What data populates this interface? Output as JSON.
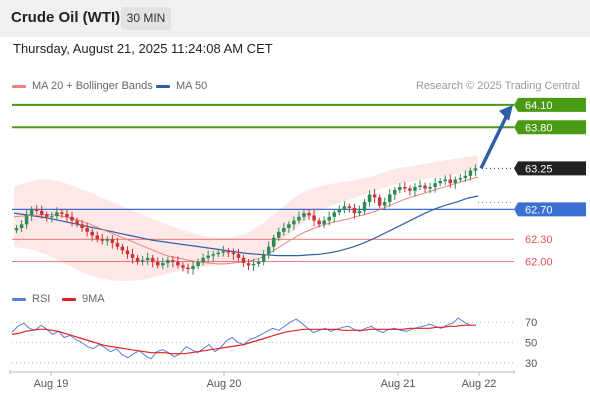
{
  "header": {
    "title": "Crude Oil (WTI)",
    "interval": "30 MIN"
  },
  "datetime": "Thursday, August 21, 2025 11:24:08 AM CET",
  "legend": {
    "ma20_bb": "MA 20 + Bollinger Bands",
    "ma50": "MA 50",
    "rsi": "RSI",
    "rsi_ma": "9MA"
  },
  "watermark": "Research © 2025 Trading Central",
  "colors": {
    "ma20": "#f08080",
    "bollinger_fill": "#fde3e3",
    "ma50": "#2f5fa8",
    "target": "#4a9a14",
    "pivot": "#3c6fd1",
    "support": "#e05252",
    "last": "#222222",
    "bull": "#2e8b57",
    "bear": "#cc3333",
    "rsi": "#5a7ed8",
    "rsi_ma": "#dd2222"
  },
  "chart_data": [
    {
      "type": "candlestick",
      "title": "Crude Oil (WTI)",
      "timeframe": "30 MIN",
      "x_tick_labels": [
        "Aug 19",
        "Aug 20",
        "Aug 21",
        "Aug 22"
      ],
      "ylim": [
        61.7,
        64.3
      ],
      "close": [
        62.45,
        62.5,
        62.62,
        62.7,
        62.68,
        62.63,
        62.6,
        62.61,
        62.66,
        62.64,
        62.6,
        62.55,
        62.5,
        62.45,
        62.4,
        62.35,
        62.3,
        62.28,
        62.3,
        62.25,
        62.2,
        62.15,
        62.1,
        62.05,
        62.0,
        62.02,
        62.05,
        62.0,
        61.95,
        61.98,
        62.02,
        62.0,
        61.95,
        61.92,
        61.9,
        61.94,
        62.0,
        62.05,
        62.08,
        62.1,
        62.12,
        62.14,
        62.12,
        62.1,
        62.05,
        61.98,
        61.95,
        61.97,
        62.0,
        62.1,
        62.2,
        62.32,
        62.4,
        62.45,
        62.5,
        62.55,
        62.6,
        62.65,
        62.62,
        62.55,
        62.5,
        62.55,
        62.6,
        62.66,
        62.7,
        62.74,
        62.72,
        62.65,
        62.68,
        62.8,
        62.9,
        62.86,
        62.75,
        62.8,
        62.9,
        62.96,
        63.0,
        62.98,
        62.95,
        63.0,
        63.02,
        62.98,
        63.0,
        63.05,
        63.08,
        63.1,
        63.05,
        63.1,
        63.12,
        63.15,
        63.22,
        63.25
      ],
      "series": [
        {
          "name": "MA 20 + Bollinger Bands",
          "ma": [
            62.6,
            62.61,
            62.62,
            62.62,
            62.63,
            62.63,
            62.62,
            62.6,
            62.58,
            62.55,
            62.52,
            62.48,
            62.44,
            62.4,
            62.36,
            62.32,
            62.28,
            62.24,
            62.2,
            62.16,
            62.12,
            62.08,
            62.06,
            62.04,
            62.02,
            62.0,
            61.99,
            61.98,
            61.97,
            61.97,
            61.98,
            61.99,
            62.0,
            62.02,
            62.05,
            62.1,
            62.16,
            62.22,
            62.28,
            62.34,
            62.39,
            62.43,
            62.47,
            62.5,
            62.53,
            62.55,
            62.57,
            62.6,
            62.62,
            62.65,
            62.68,
            62.72,
            62.76,
            62.8,
            62.84,
            62.87,
            62.9,
            62.93,
            62.96,
            62.99,
            63.02,
            63.05,
            63.08,
            63.11,
            63.13
          ],
          "upper": [
            63.0,
            63.05,
            63.08,
            63.1,
            63.1,
            63.08,
            63.04,
            63.0,
            62.95,
            62.9,
            62.85,
            62.8,
            62.75,
            62.7,
            62.65,
            62.6,
            62.55,
            62.5,
            62.46,
            62.42,
            62.38,
            62.35,
            62.33,
            62.32,
            62.32,
            62.34,
            62.38,
            62.44,
            62.52,
            62.62,
            62.72,
            62.82,
            62.9,
            62.96,
            63.0,
            63.03,
            63.05,
            63.07,
            63.09,
            63.11,
            63.14,
            63.18,
            63.22,
            63.25,
            63.27,
            63.29,
            63.31,
            63.33,
            63.35,
            63.37,
            63.39,
            63.41,
            63.42
          ],
          "lower": [
            62.2,
            62.18,
            62.16,
            62.12,
            62.08,
            62.02,
            61.96,
            61.9,
            61.84,
            61.8,
            61.77,
            61.75,
            61.74,
            61.74,
            61.75,
            61.77,
            61.8,
            61.83,
            61.86,
            61.89,
            61.92,
            61.93,
            61.94,
            61.95,
            61.96,
            61.98,
            62.0,
            62.04,
            62.1,
            62.18,
            62.28,
            62.38,
            62.48,
            62.58,
            62.66,
            62.72,
            62.77,
            62.81,
            62.85,
            62.89,
            62.93,
            62.97,
            63.01,
            63.04,
            63.06,
            63.08,
            63.1,
            63.12,
            63.14,
            63.16,
            63.18,
            63.2,
            63.22
          ]
        },
        {
          "name": "MA 50",
          "values": [
            62.65,
            62.63,
            62.61,
            62.59,
            62.56,
            62.53,
            62.5,
            62.47,
            62.44,
            62.41,
            62.38,
            62.35,
            62.32,
            62.29,
            62.27,
            62.25,
            62.23,
            62.21,
            62.19,
            62.17,
            62.15,
            62.13,
            62.11,
            62.1,
            62.09,
            62.08,
            62.08,
            62.08,
            62.09,
            62.1,
            62.12,
            62.15,
            62.19,
            62.24,
            62.3,
            62.37,
            62.44,
            62.51,
            62.58,
            62.65,
            62.71,
            62.76,
            62.8,
            62.85,
            62.88
          ]
        }
      ],
      "levels": [
        {
          "value": 64.1,
          "label": "64.10",
          "kind": "target"
        },
        {
          "value": 63.8,
          "label": "63.80",
          "kind": "target"
        },
        {
          "value": 63.25,
          "label": "63.25",
          "kind": "last_price"
        },
        {
          "value": 62.7,
          "label": "62.70",
          "kind": "pivot"
        },
        {
          "value": 62.3,
          "label": "62.30",
          "kind": "support"
        },
        {
          "value": 62.0,
          "label": "62.00",
          "kind": "support"
        }
      ],
      "annotation": {
        "type": "arrow",
        "from": 63.25,
        "to": 64.1
      }
    },
    {
      "type": "line",
      "ylim": [
        25,
        80
      ],
      "y_tick_labels": [
        "70",
        "50",
        "30"
      ],
      "series": [
        {
          "name": "RSI",
          "values": [
            60,
            66,
            69,
            64,
            62,
            67,
            63,
            58,
            61,
            55,
            57,
            53,
            50,
            46,
            44,
            48,
            45,
            41,
            44,
            38,
            35,
            39,
            42,
            37,
            34,
            41,
            43,
            40,
            36,
            39,
            46,
            43,
            40,
            44,
            48,
            41,
            45,
            52,
            55,
            50,
            48,
            53,
            55,
            58,
            61,
            64,
            62,
            66,
            70,
            73,
            69,
            64,
            60,
            62,
            64,
            61,
            63,
            65,
            66,
            63,
            61,
            64,
            66,
            62,
            60,
            63,
            64,
            62,
            61,
            63,
            65,
            66,
            68,
            66,
            64,
            67,
            69,
            74,
            70,
            67
          ]
        },
        {
          "name": "9MA",
          "values": [
            58,
            59,
            61,
            62,
            63,
            63,
            62,
            61,
            59,
            57,
            55,
            53,
            51,
            49,
            47,
            46,
            45,
            44,
            43,
            42,
            41,
            40,
            40,
            40,
            39,
            39,
            39,
            40,
            41,
            42,
            43,
            44,
            45,
            46,
            47,
            48,
            50,
            52,
            54,
            56,
            58,
            60,
            61,
            62,
            63,
            63,
            63,
            63,
            63,
            63,
            62,
            62,
            62,
            62,
            63,
            63,
            63,
            63,
            63,
            63,
            64,
            64,
            64,
            64,
            65,
            65,
            66,
            66,
            67,
            67,
            67
          ]
        }
      ]
    }
  ]
}
